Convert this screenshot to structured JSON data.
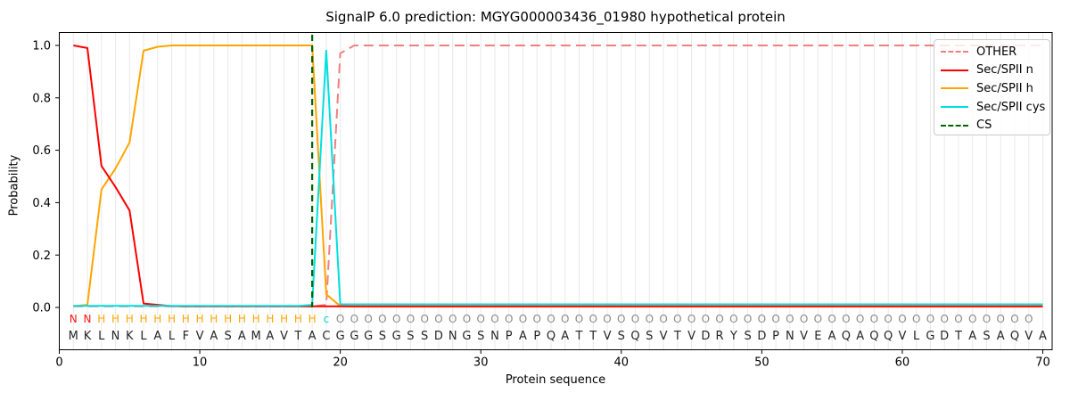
{
  "title": "SignalP 6.0 prediction: MGYG000003436_01980 hypothetical protein",
  "axes": {
    "xlabel": "Protein sequence",
    "ylabel": "Probability",
    "x_ticks": [
      0,
      10,
      20,
      30,
      40,
      50,
      60,
      70
    ],
    "y_ticks": [
      "0.0",
      "0.2",
      "0.4",
      "0.6",
      "0.8",
      "1.0"
    ]
  },
  "legend": {
    "entries": [
      {
        "label": "OTHER",
        "color": "#f08080",
        "dashed": true
      },
      {
        "label": "Sec/SPII n",
        "color": "#ff0000",
        "dashed": false
      },
      {
        "label": "Sec/SPII h",
        "color": "#ffa500",
        "dashed": false
      },
      {
        "label": "Sec/SPII cys",
        "color": "#00e0e0",
        "dashed": false
      },
      {
        "label": "CS",
        "color": "#006400",
        "dashed": true
      }
    ]
  },
  "chart_data": {
    "type": "line",
    "title": "SignalP 6.0 prediction: MGYG000003436_01980 hypothetical protein",
    "xlabel": "Protein sequence",
    "ylabel": "Probability",
    "xlim": [
      0,
      70.67
    ],
    "ylim": [
      -0.16,
      1.05
    ],
    "x_tick_values": [
      0,
      10,
      20,
      30,
      40,
      50,
      60,
      70
    ],
    "y_tick_values": [
      0.0,
      0.2,
      0.4,
      0.6,
      0.8,
      1.0
    ],
    "grid": "vertical line at every residue position 1-70",
    "legend_position": "upper right",
    "sequence": "MKLNKLALFVASAMAVTACGGGSGSSDNGSNPAPQATTVSQSVTVDRYSDPNVEAQAQQVLGDTASAQVA",
    "annotation": "NNHHHHHHHHHHHHHHHHcOOOOOOOOOOOOOOOOOOOOOOOOOOOOOOOOOOOOOOOOOOOOOOOOOO",
    "annotation_colors": {
      "N": "#ff1414",
      "H": "#ffa500",
      "c": "#00d2d2",
      "O": "#8a8a8a"
    },
    "sequence_color": "#262626",
    "cs_position": 18,
    "cs_color": "#006400",
    "draw_order": [
      "OTHER",
      "Sec/SPII h",
      "Sec/SPII n",
      "Sec/SPII cys"
    ],
    "series": [
      {
        "name": "OTHER",
        "color": "#f08080",
        "style": "dashed",
        "values": [
          0.004,
          0.004,
          0.004,
          0.004,
          0.004,
          0.004,
          0.004,
          0.004,
          0.004,
          0.004,
          0.004,
          0.004,
          0.004,
          0.004,
          0.004,
          0.004,
          0.004,
          0.004,
          0.01,
          0.97,
          1.0,
          1.0,
          1.0,
          1.0,
          1.0,
          1.0,
          1.0,
          1.0,
          1.0,
          1.0,
          1.0,
          1.0,
          1.0,
          1.0,
          1.0,
          1.0,
          1.0,
          1.0,
          1.0,
          1.0,
          1.0,
          1.0,
          1.0,
          1.0,
          1.0,
          1.0,
          1.0,
          1.0,
          1.0,
          1.0,
          1.0,
          1.0,
          1.0,
          1.0,
          1.0,
          1.0,
          1.0,
          1.0,
          1.0,
          1.0,
          1.0,
          1.0,
          1.0,
          1.0,
          1.0,
          1.0,
          1.0,
          1.0,
          1.0,
          1.0
        ]
      },
      {
        "name": "Sec/SPII n",
        "color": "#ff0000",
        "style": "solid",
        "values": [
          1.0,
          0.99,
          0.54,
          0.46,
          0.37,
          0.015,
          0.01,
          0.005,
          0.004,
          0.004,
          0.004,
          0.004,
          0.004,
          0.004,
          0.004,
          0.004,
          0.004,
          0.004,
          0.004,
          0.004,
          0.004,
          0.004,
          0.004,
          0.004,
          0.004,
          0.004,
          0.004,
          0.004,
          0.004,
          0.004,
          0.004,
          0.004,
          0.004,
          0.004,
          0.004,
          0.004,
          0.004,
          0.004,
          0.004,
          0.004,
          0.004,
          0.004,
          0.004,
          0.004,
          0.004,
          0.004,
          0.004,
          0.004,
          0.004,
          0.004,
          0.004,
          0.004,
          0.004,
          0.004,
          0.004,
          0.004,
          0.004,
          0.004,
          0.004,
          0.004,
          0.004,
          0.004,
          0.004,
          0.004,
          0.004,
          0.004,
          0.004,
          0.004,
          0.004,
          0.004
        ]
      },
      {
        "name": "Sec/SPII h",
        "color": "#ffa500",
        "style": "solid",
        "values": [
          0.005,
          0.01,
          0.45,
          0.53,
          0.63,
          0.98,
          0.995,
          1.0,
          1.0,
          1.0,
          1.0,
          1.0,
          1.0,
          1.0,
          1.0,
          1.0,
          1.0,
          1.0,
          0.05,
          0.005,
          0.003,
          0.003,
          0.003,
          0.003,
          0.003,
          0.003,
          0.003,
          0.003,
          0.003,
          0.003,
          0.003,
          0.003,
          0.003,
          0.003,
          0.003,
          0.003,
          0.003,
          0.003,
          0.003,
          0.003,
          0.003,
          0.003,
          0.003,
          0.003,
          0.003,
          0.003,
          0.003,
          0.003,
          0.003,
          0.003,
          0.003,
          0.003,
          0.003,
          0.003,
          0.003,
          0.003,
          0.003,
          0.003,
          0.003,
          0.003,
          0.003,
          0.003,
          0.003,
          0.003,
          0.003,
          0.003,
          0.003,
          0.003,
          0.003,
          0.003
        ]
      },
      {
        "name": "Sec/SPII cys",
        "color": "#00e0e0",
        "style": "solid",
        "values": [
          0.006,
          0.006,
          0.006,
          0.006,
          0.006,
          0.006,
          0.006,
          0.006,
          0.006,
          0.006,
          0.006,
          0.006,
          0.006,
          0.006,
          0.006,
          0.006,
          0.006,
          0.01,
          0.98,
          0.012,
          0.012,
          0.012,
          0.012,
          0.012,
          0.012,
          0.012,
          0.012,
          0.012,
          0.012,
          0.012,
          0.012,
          0.012,
          0.012,
          0.012,
          0.012,
          0.012,
          0.012,
          0.012,
          0.012,
          0.012,
          0.012,
          0.012,
          0.012,
          0.012,
          0.012,
          0.012,
          0.012,
          0.012,
          0.012,
          0.012,
          0.012,
          0.012,
          0.012,
          0.012,
          0.012,
          0.012,
          0.012,
          0.012,
          0.012,
          0.012,
          0.012,
          0.012,
          0.012,
          0.012,
          0.012,
          0.012,
          0.012,
          0.012,
          0.012,
          0.012
        ]
      }
    ]
  }
}
